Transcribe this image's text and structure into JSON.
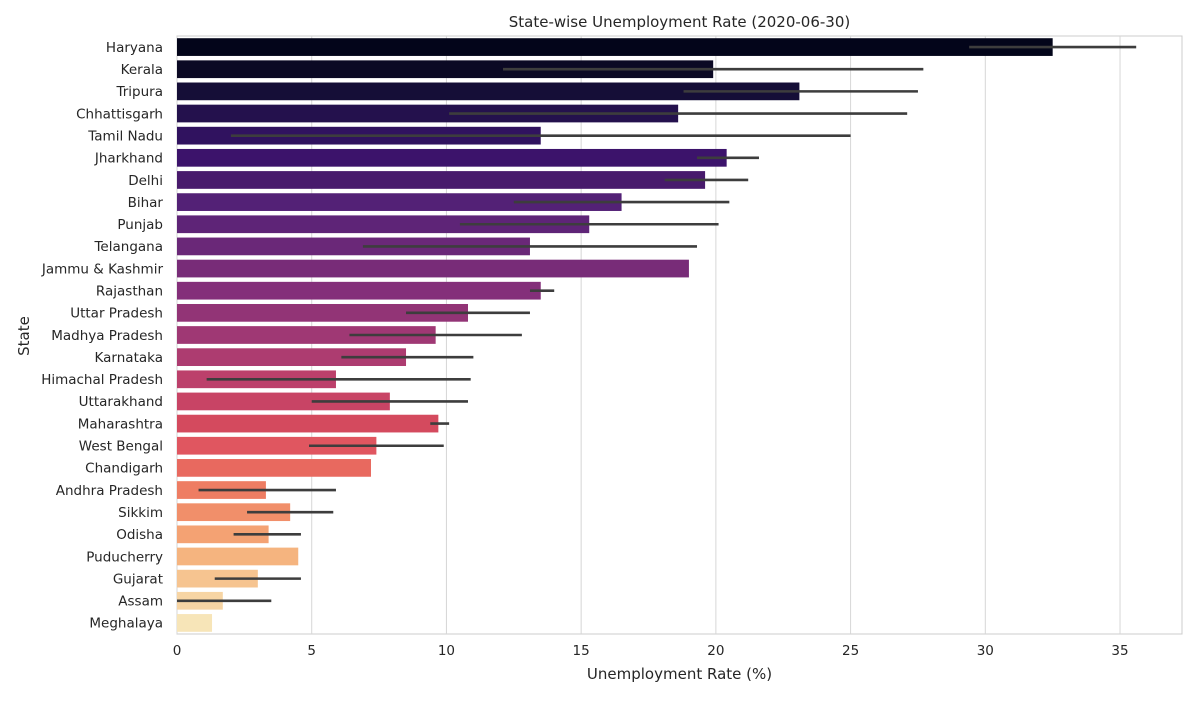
{
  "chart_data": {
    "type": "bar",
    "orientation": "horizontal",
    "title": "State-wise Unemployment Rate (2020-06-30)",
    "xlabel": "Unemployment Rate (%)",
    "ylabel": "State",
    "xlim": [
      0,
      37.3
    ],
    "xticks": [
      0,
      5,
      10,
      15,
      20,
      25,
      30,
      35
    ],
    "grid": true,
    "legend": "none",
    "categories": [
      "Haryana",
      "Kerala",
      "Tripura",
      "Chhattisgarh",
      "Tamil Nadu",
      "Jharkhand",
      "Delhi",
      "Bihar",
      "Punjab",
      "Telangana",
      "Jammu & Kashmir",
      "Rajasthan",
      "Uttar Pradesh",
      "Madhya Pradesh",
      "Karnataka",
      "Himachal Pradesh",
      "Uttarakhand",
      "Maharashtra",
      "West Bengal",
      "Chandigarh",
      "Andhra Pradesh",
      "Sikkim",
      "Odisha",
      "Puducherry",
      "Gujarat",
      "Assam",
      "Meghalaya"
    ],
    "values": [
      32.5,
      19.9,
      23.1,
      18.6,
      13.5,
      20.4,
      19.6,
      16.5,
      15.3,
      13.1,
      19.0,
      13.5,
      10.8,
      9.6,
      8.5,
      5.9,
      7.9,
      9.7,
      7.4,
      7.2,
      3.3,
      4.2,
      3.4,
      4.5,
      3.0,
      1.7,
      1.3
    ],
    "error_low": [
      29.4,
      12.1,
      18.8,
      10.1,
      2.0,
      19.3,
      18.1,
      12.5,
      10.5,
      6.9,
      null,
      13.1,
      8.5,
      6.4,
      6.1,
      1.1,
      5.0,
      9.4,
      4.9,
      null,
      0.8,
      2.6,
      2.1,
      null,
      1.4,
      0.0,
      null
    ],
    "error_high": [
      35.6,
      27.7,
      27.5,
      27.1,
      25.0,
      21.6,
      21.2,
      20.5,
      20.1,
      19.3,
      null,
      14.0,
      13.1,
      12.8,
      11.0,
      10.9,
      10.8,
      10.1,
      9.9,
      null,
      5.9,
      5.8,
      4.6,
      null,
      4.6,
      3.5,
      null
    ],
    "palette": [
      "#03051a",
      "#0b0924",
      "#150e37",
      "#24114d",
      "#30125f",
      "#3c136b",
      "#481a6c",
      "#532176",
      "#5e2477",
      "#6a2878",
      "#782c78",
      "#842f7a",
      "#923476",
      "#9f3874",
      "#ad3c70",
      "#bc406b",
      "#c84465",
      "#d44a5e",
      "#e05660",
      "#e8695f",
      "#ee7d63",
      "#f18f6a",
      "#f4a273",
      "#f5b47f",
      "#f6c490",
      "#f7d5a4",
      "#f7e5b8"
    ],
    "error_color": "#3d3d3d"
  }
}
